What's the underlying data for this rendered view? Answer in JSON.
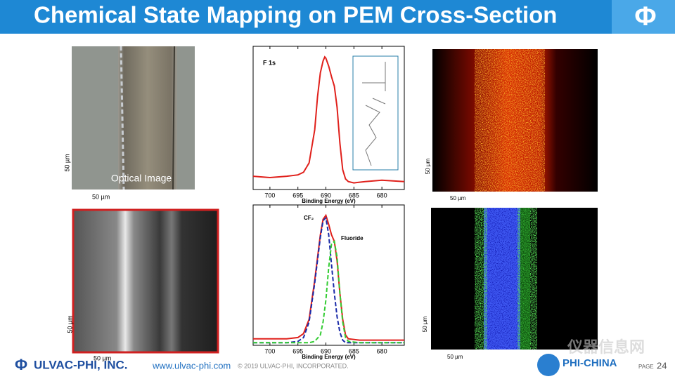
{
  "header": {
    "title": "Chemical State Mapping on PEM Cross-Section",
    "logo": "Φ"
  },
  "images": {
    "optical": {
      "caption": "Optical Image",
      "scale_x": "50 µm",
      "scale_y": "50 µm"
    },
    "f_map": {
      "scale_x": "50 µm",
      "scale_y": "50 µm"
    },
    "gray_image": {
      "scale_x": "50 µm",
      "scale_y": "50 µm"
    },
    "chem_map": {
      "scale_x": "50 µm",
      "scale_y": "50 µm"
    }
  },
  "spectra": [
    {
      "label": "F 1s",
      "xlim": [
        703,
        676
      ],
      "ylim": [
        0,
        1.08
      ],
      "xticks": [
        700,
        695,
        690,
        685,
        680
      ],
      "xlabel": "Binding Energy (eV)",
      "x": [
        703,
        700,
        697,
        695,
        694,
        693,
        692,
        691.5,
        691,
        690.5,
        690.2,
        690,
        689.5,
        689,
        688.5,
        688,
        687.5,
        687,
        686.5,
        686,
        685,
        683,
        680,
        676
      ],
      "series": [
        {
          "color": "#e0201b",
          "dash": false,
          "values": [
            0.1,
            0.09,
            0.1,
            0.11,
            0.13,
            0.2,
            0.45,
            0.7,
            0.88,
            0.97,
            1,
            0.99,
            0.93,
            0.85,
            0.78,
            0.62,
            0.35,
            0.15,
            0.08,
            0.06,
            0.05,
            0.06,
            0.07,
            0.06
          ]
        }
      ]
    },
    {
      "annotations": [
        "CF₂",
        "Fluoride"
      ],
      "xlim": [
        703,
        676
      ],
      "ylim": [
        0,
        1.08
      ],
      "xticks": [
        700,
        695,
        690,
        685,
        680
      ],
      "xlabel": "Binding Energy (eV)",
      "x": [
        703,
        697,
        695,
        694,
        693,
        692,
        691,
        690.5,
        690,
        689.5,
        689,
        688.5,
        688,
        687.5,
        687,
        686.5,
        686,
        684,
        680,
        676
      ],
      "series": [
        {
          "color": "#e0201b",
          "dash": false,
          "values": [
            0.05,
            0.05,
            0.06,
            0.09,
            0.2,
            0.5,
            0.85,
            0.97,
            1,
            0.93,
            0.85,
            0.8,
            0.65,
            0.4,
            0.2,
            0.08,
            0.05,
            0.04,
            0.04,
            0.04
          ]
        },
        {
          "color": "#1a2aa8",
          "dash": true,
          "values": [
            0.02,
            0.02,
            0.03,
            0.06,
            0.18,
            0.48,
            0.83,
            0.96,
            0.98,
            0.85,
            0.62,
            0.4,
            0.22,
            0.1,
            0.04,
            0.02,
            0.02,
            0.02,
            0.02,
            0.02
          ]
        },
        {
          "color": "#33cc33",
          "dash": true,
          "values": [
            0.02,
            0.02,
            0.02,
            0.02,
            0.02,
            0.03,
            0.08,
            0.18,
            0.35,
            0.6,
            0.78,
            0.8,
            0.68,
            0.4,
            0.18,
            0.06,
            0.03,
            0.02,
            0.02,
            0.02
          ]
        }
      ]
    }
  ],
  "footer": {
    "logo": "Φ",
    "company": "ULVAC-PHI, INC.",
    "url": "www.ulvac-phi.com",
    "copyright": "© 2019 ULVAC-PHI, INCORPORATED.",
    "brand": "PHI-CHINA",
    "page_label": "PAGE",
    "page_number": 24,
    "watermark": "仪器信息网"
  }
}
